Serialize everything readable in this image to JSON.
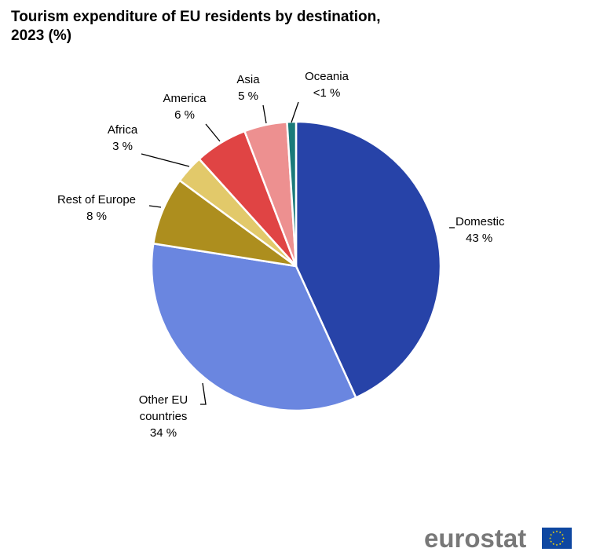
{
  "title_lines": [
    "Tourism expenditure of EU residents by destination,",
    "2023 (%)"
  ],
  "chart_data": {
    "type": "pie",
    "title": "Tourism expenditure of EU residents by destination, 2023 (%)",
    "start": "12 o'clock",
    "direction": "clockwise",
    "slices": [
      {
        "label": "Domestic",
        "value_label": "43 %",
        "value": 43.2,
        "color": "#2743a8"
      },
      {
        "label": "Other EU countries",
        "value_label": "34 %",
        "value": 34.3,
        "color": "#6a86e0"
      },
      {
        "label": "Rest of Europe",
        "value_label": "8 %",
        "value": 7.6,
        "color": "#ad8e1e"
      },
      {
        "label": "Africa",
        "value_label": "3 %",
        "value": 3.2,
        "color": "#e2c96a"
      },
      {
        "label": "America",
        "value_label": "6 %",
        "value": 5.9,
        "color": "#e04444"
      },
      {
        "label": "Asia",
        "value_label": "5 %",
        "value": 4.8,
        "color": "#ed9090"
      },
      {
        "label": "Oceania",
        "value_label": "<1 %",
        "value": 1.0,
        "color": "#1a7a7a"
      }
    ]
  },
  "logo": {
    "text": "eurostat",
    "flag_icon": "eu-flag-icon",
    "flag_color": "#0e47a1",
    "star_color": "#ffdd00"
  }
}
